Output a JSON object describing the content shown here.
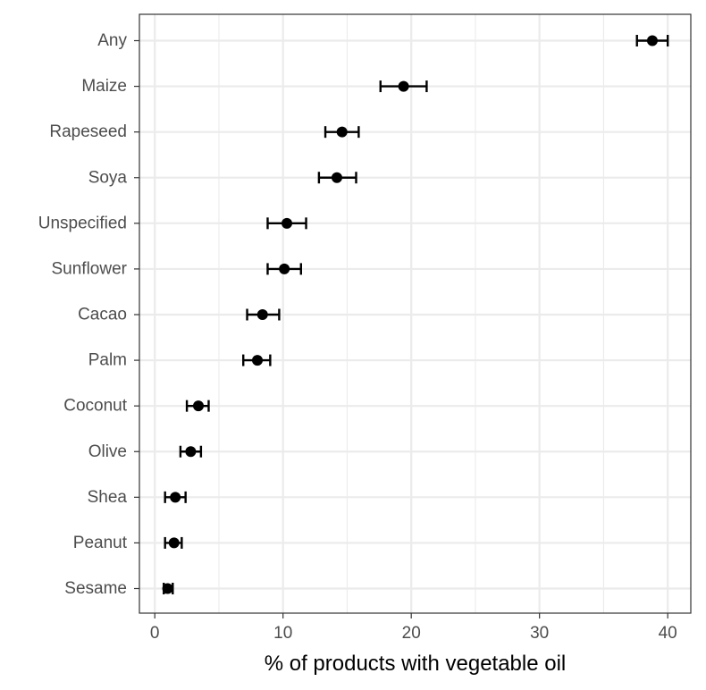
{
  "chart_data": {
    "type": "scatter",
    "title": "",
    "xlabel": "% of products with vegetable oil",
    "ylabel": "",
    "xlim": [
      -1.2,
      41.8
    ],
    "x_ticks": [
      0,
      10,
      20,
      30,
      40
    ],
    "x_tick_labels": [
      "0",
      "10",
      "20",
      "30",
      "40"
    ],
    "grid": true,
    "legend": "none",
    "colors": {
      "points": "#000000",
      "grid": "#ebebeb",
      "panel_border": "#333333"
    },
    "categories": [
      "Any",
      "Maize",
      "Rapeseed",
      "Soya",
      "Unspecified",
      "Sunflower",
      "Cacao",
      "Palm",
      "Coconut",
      "Olive",
      "Shea",
      "Peanut",
      "Sesame"
    ],
    "values": [
      38.8,
      19.4,
      14.6,
      14.2,
      10.3,
      10.1,
      8.4,
      8.0,
      3.4,
      2.8,
      1.6,
      1.5,
      1.0
    ],
    "lower": [
      37.6,
      17.6,
      13.3,
      12.8,
      8.8,
      8.8,
      7.2,
      6.9,
      2.5,
      2.0,
      0.8,
      0.8,
      0.7
    ],
    "upper": [
      40.0,
      21.2,
      15.9,
      15.7,
      11.8,
      11.4,
      9.7,
      9.0,
      4.2,
      3.6,
      2.4,
      2.1,
      1.4
    ]
  }
}
